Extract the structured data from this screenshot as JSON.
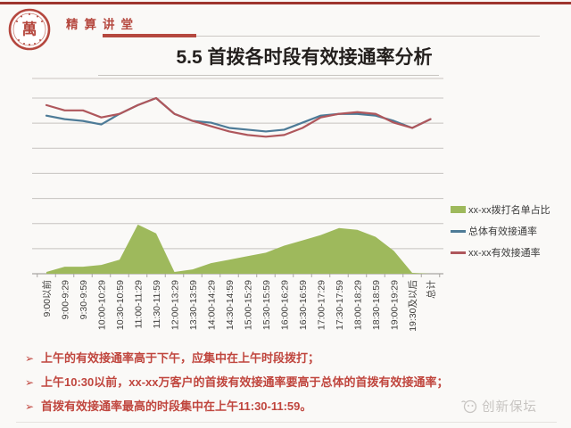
{
  "header": {
    "brand": "精算讲堂",
    "logo_glyph": "萬"
  },
  "title": "5.5 首拨各时段有效接通率分析",
  "chart_data": {
    "type": "combo-area-line",
    "title": "",
    "xlabel": "",
    "ylabel": "",
    "y_axis_labels": "none",
    "y_gridlines": 7,
    "ylim": [
      0,
      100
    ],
    "legend_position": "right",
    "note": "no y-axis tick labels shown; values are relative heights (100 = top gridline)",
    "categories": [
      "9:00以前",
      "9:00-9:29",
      "9:30-9:59",
      "10:00-10:29",
      "10:30-10:59",
      "11:00-11:29",
      "11:30-11:59",
      "12:00-13:29",
      "13:30-13:59",
      "14:00-14:29",
      "14:30-14:59",
      "15:00-15:29",
      "15:30-15:59",
      "16:00-16:29",
      "16:30-16:59",
      "17:00-17:29",
      "17:30-17:59",
      "18:00-18:29",
      "18:30-18:59",
      "19:00-19:29",
      "19:30及以后",
      "总计"
    ],
    "series": [
      {
        "name": "xx-xx拨打名单占比",
        "type": "area",
        "color": "#9EB95C",
        "values": [
          1,
          4,
          4,
          5,
          8,
          28,
          23,
          1,
          2.5,
          6,
          8,
          10,
          12,
          16,
          19,
          22,
          26,
          25,
          21,
          13,
          0.5,
          0
        ]
      },
      {
        "name": "总体有效接通率",
        "type": "line",
        "color": "#4D7B97",
        "values": [
          90,
          88,
          87,
          85,
          91,
          96,
          100,
          91,
          87,
          86,
          83,
          82,
          81,
          82,
          86,
          90,
          91,
          91,
          90,
          87,
          83,
          88
        ]
      },
      {
        "name": "xx-xx有效接通率",
        "type": "line",
        "color": "#AF575C",
        "values": [
          96,
          93,
          93,
          89,
          91,
          96,
          100,
          91,
          87,
          84,
          81,
          79,
          78,
          79,
          83,
          89,
          91,
          92,
          91,
          86,
          83,
          88
        ]
      }
    ]
  },
  "bullets": {
    "glyph": "➢",
    "items": [
      "上午的有效接通率高于下午，应集中在上午时段拨打；",
      "上午10:30以前，xx-xx万客户的首拨有效接通率要高于总体的首拨有效接通率；",
      "首拨有效接通率最高的时段集中在上午11:30-11:59。"
    ]
  },
  "watermark": {
    "text": "创新保坛"
  }
}
